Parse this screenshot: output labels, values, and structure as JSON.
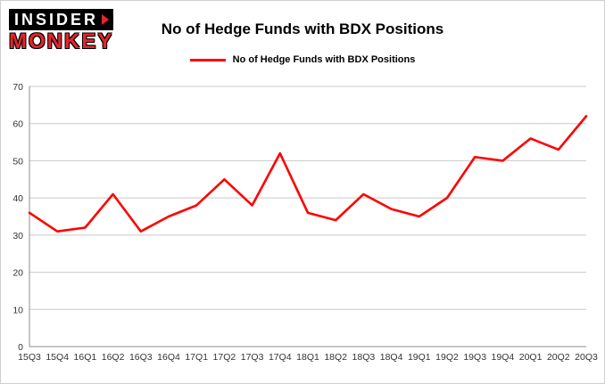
{
  "header": {
    "logo": {
      "line1": "INSIDER",
      "line2": "MONKEY"
    },
    "title": "No of Hedge Funds with BDX Positions"
  },
  "legend": {
    "label": "No of Hedge Funds with BDX Positions",
    "color": "#ff0000"
  },
  "chart_data": {
    "type": "line",
    "title": "No of Hedge Funds with BDX Positions",
    "categories": [
      "15Q3",
      "15Q4",
      "16Q1",
      "16Q2",
      "16Q3",
      "16Q4",
      "17Q1",
      "17Q2",
      "17Q3",
      "17Q4",
      "18Q1",
      "18Q2",
      "18Q3",
      "18Q4",
      "19Q1",
      "19Q2",
      "19Q3",
      "19Q4",
      "20Q1",
      "20Q2",
      "20Q3"
    ],
    "values": [
      36,
      31,
      32,
      41,
      31,
      35,
      38,
      45,
      38,
      52,
      36,
      34,
      41,
      37,
      35,
      40,
      51,
      50,
      56,
      53,
      62
    ],
    "xlabel": "",
    "ylabel": "",
    "ylim": [
      0,
      70
    ],
    "yticks": [
      0,
      10,
      20,
      30,
      40,
      50,
      60,
      70
    ],
    "grid": true,
    "legend_position": "top",
    "line_color": "#ff0000",
    "gridline_color": "#c9c9c9",
    "axis_color": "#8c8c8c"
  }
}
